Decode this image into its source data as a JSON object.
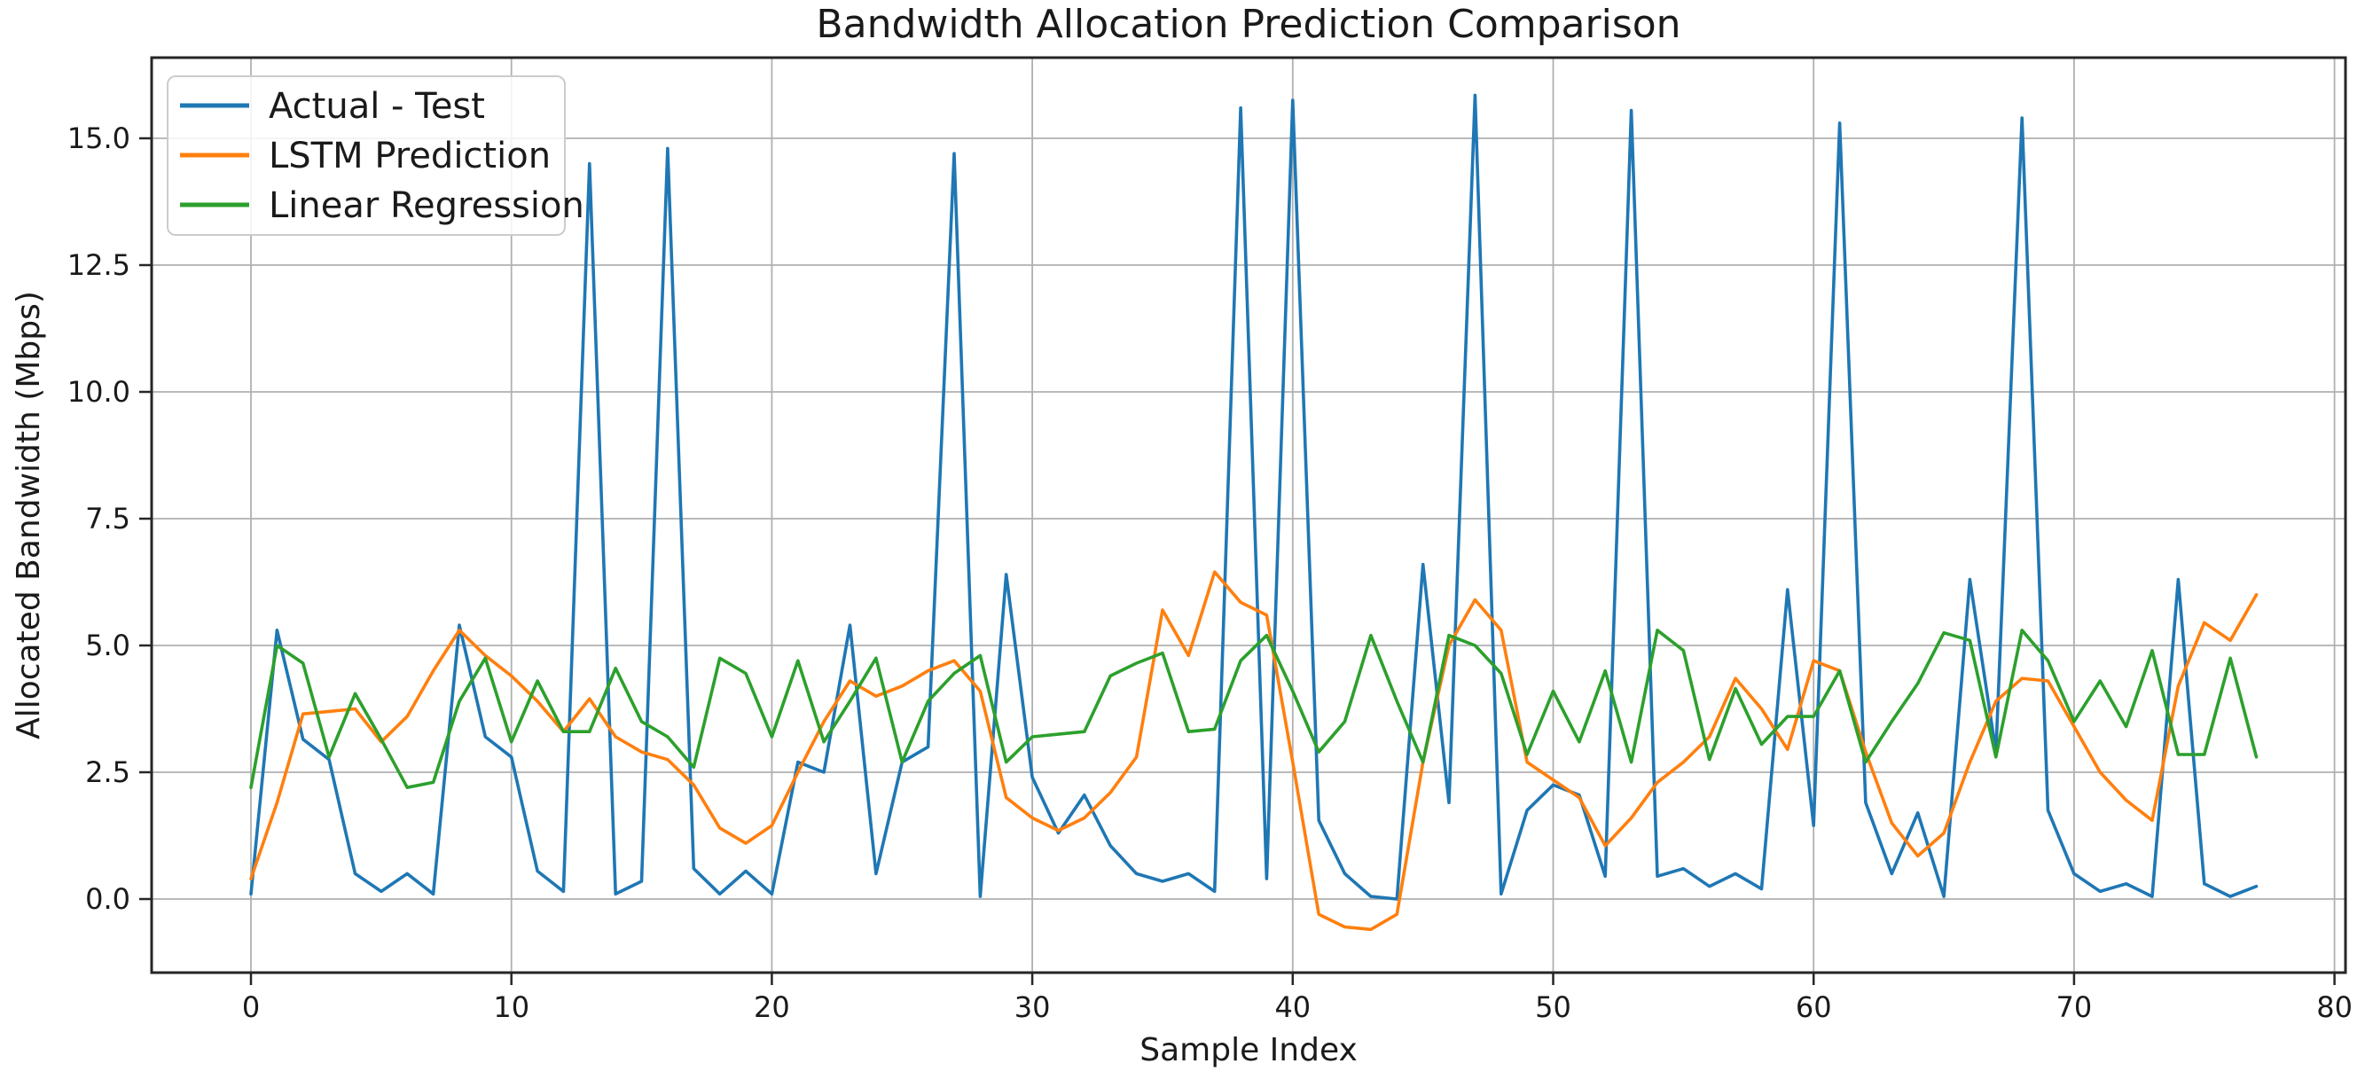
{
  "chart_data": {
    "type": "line",
    "title": "Bandwidth Allocation Prediction Comparison",
    "xlabel": "Sample Index",
    "ylabel": "Allocated Bandwidth (Mbps)",
    "grid": true,
    "legend_position": "upper left",
    "background_color": "#ffffff",
    "grid_color": "#b0b0b0",
    "frame_color": "#262626",
    "x_ticks": [
      0,
      10,
      20,
      30,
      40,
      50,
      60,
      70,
      80
    ],
    "y_ticks": [
      0.0,
      2.5,
      5.0,
      7.5,
      10.0,
      12.5,
      15.0
    ],
    "y_tick_labels": [
      "0.0",
      "2.5",
      "5.0",
      "7.5",
      "10.0",
      "12.5",
      "15.0"
    ],
    "xlim": [
      -3.8,
      80.4
    ],
    "ylim": [
      -1.45,
      16.6
    ],
    "x": [
      0,
      1,
      2,
      3,
      4,
      5,
      6,
      7,
      8,
      9,
      10,
      11,
      12,
      13,
      14,
      15,
      16,
      17,
      18,
      19,
      20,
      21,
      22,
      23,
      24,
      25,
      26,
      27,
      28,
      29,
      30,
      31,
      32,
      33,
      34,
      35,
      36,
      37,
      38,
      39,
      40,
      41,
      42,
      43,
      44,
      45,
      46,
      47,
      48,
      49,
      50,
      51,
      52,
      53,
      54,
      55,
      56,
      57,
      58,
      59,
      60,
      61,
      62,
      63,
      64,
      65,
      66,
      67,
      68,
      69,
      70,
      71,
      72,
      73,
      74,
      75,
      76,
      77
    ],
    "series": [
      {
        "name": "Actual - Test",
        "color": "#1f77b4",
        "values": [
          0.1,
          5.3,
          3.15,
          2.75,
          0.5,
          0.15,
          0.5,
          0.1,
          5.4,
          3.2,
          2.8,
          0.55,
          0.15,
          14.5,
          0.1,
          0.35,
          14.8,
          0.6,
          0.1,
          0.55,
          0.1,
          2.7,
          2.5,
          5.4,
          0.5,
          2.7,
          3.0,
          14.7,
          0.05,
          6.4,
          2.4,
          1.3,
          2.05,
          1.05,
          0.5,
          0.35,
          0.5,
          0.15,
          15.6,
          0.4,
          15.75,
          1.55,
          0.5,
          0.05,
          0.0,
          6.6,
          1.9,
          15.85,
          0.1,
          1.75,
          2.25,
          2.05,
          0.45,
          15.55,
          0.45,
          0.6,
          0.25,
          0.5,
          0.2,
          6.1,
          1.45,
          15.3,
          1.9,
          0.5,
          1.7,
          0.05,
          6.3,
          2.9,
          15.4,
          1.75,
          0.5,
          0.15,
          0.3,
          0.05,
          6.3,
          0.3,
          0.05,
          0.25
        ]
      },
      {
        "name": "LSTM Prediction",
        "color": "#ff7f0e",
        "values": [
          0.4,
          1.9,
          3.65,
          3.7,
          3.75,
          3.1,
          3.6,
          4.5,
          5.3,
          4.8,
          4.4,
          3.9,
          3.3,
          3.95,
          3.2,
          2.9,
          2.75,
          2.25,
          1.4,
          1.1,
          1.45,
          2.5,
          3.5,
          4.3,
          4.0,
          4.2,
          4.5,
          4.7,
          4.1,
          2.0,
          1.6,
          1.35,
          1.6,
          2.1,
          2.8,
          5.7,
          4.8,
          6.45,
          5.85,
          5.6,
          2.7,
          -0.3,
          -0.55,
          -0.6,
          -0.3,
          2.7,
          5.0,
          5.9,
          5.3,
          2.7,
          2.35,
          2.0,
          1.05,
          1.6,
          2.3,
          2.7,
          3.2,
          4.35,
          3.75,
          2.95,
          4.7,
          4.5,
          2.9,
          1.5,
          0.85,
          1.3,
          2.7,
          3.9,
          4.35,
          4.3,
          3.4,
          2.5,
          1.95,
          1.55,
          4.2,
          5.45,
          5.1,
          6.0
        ]
      },
      {
        "name": "Linear Regression",
        "color": "#2ca02c",
        "values": [
          2.2,
          5.0,
          4.65,
          2.8,
          4.05,
          3.15,
          2.2,
          2.3,
          3.9,
          4.75,
          3.1,
          4.3,
          3.3,
          3.3,
          4.55,
          3.5,
          3.2,
          2.6,
          4.75,
          4.45,
          3.2,
          4.7,
          3.1,
          3.9,
          4.75,
          2.7,
          3.9,
          4.45,
          4.8,
          2.7,
          3.2,
          3.25,
          3.3,
          4.4,
          4.65,
          4.85,
          3.3,
          3.35,
          4.7,
          5.2,
          4.1,
          2.9,
          3.5,
          5.2,
          3.9,
          2.7,
          5.2,
          5.0,
          4.45,
          2.85,
          4.1,
          3.1,
          4.5,
          2.7,
          5.3,
          4.9,
          2.75,
          4.15,
          3.05,
          3.6,
          3.6,
          4.5,
          2.7,
          3.5,
          4.25,
          5.25,
          5.1,
          2.8,
          5.3,
          4.7,
          3.5,
          4.3,
          3.4,
          4.9,
          2.85,
          2.85,
          4.75,
          2.8
        ]
      }
    ]
  }
}
